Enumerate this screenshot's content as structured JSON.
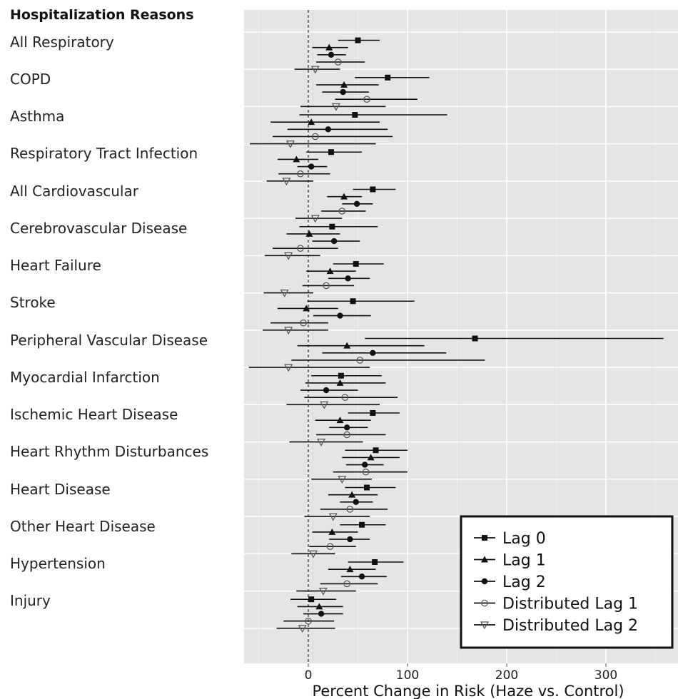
{
  "chart_data": {
    "type": "forest",
    "title": "Hospitalization Reasons",
    "xlabel": "Percent Change in Risk (Haze vs. Control)",
    "xlim": [
      -65,
      365
    ],
    "xticks": [
      0,
      100,
      200,
      300
    ],
    "reference_line": 0,
    "grid": true,
    "legend_position": "bottom-right",
    "series": [
      {
        "name": "Lag 0",
        "marker": "square"
      },
      {
        "name": "Lag 1",
        "marker": "triangle"
      },
      {
        "name": "Lag 2",
        "marker": "circle"
      },
      {
        "name": "Distributed Lag 1",
        "marker": "open-circle"
      },
      {
        "name": "Distributed Lag 2",
        "marker": "open-triangle-down"
      }
    ],
    "categories": [
      {
        "label": "All Respiratory",
        "estimates": [
          [
            50,
            30,
            72
          ],
          [
            21,
            4,
            40
          ],
          [
            23,
            9,
            38
          ],
          [
            30,
            8,
            57
          ],
          [
            7,
            -14,
            32
          ]
        ]
      },
      {
        "label": "COPD",
        "estimates": [
          [
            80,
            47,
            122
          ],
          [
            36,
            8,
            71
          ],
          [
            35,
            14,
            61
          ],
          [
            59,
            27,
            110
          ],
          [
            28,
            -8,
            78
          ]
        ]
      },
      {
        "label": "Asthma",
        "estimates": [
          [
            47,
            -9,
            140
          ],
          [
            3,
            -38,
            72
          ],
          [
            20,
            -21,
            80
          ],
          [
            7,
            -36,
            85
          ],
          [
            -18,
            -59,
            68
          ]
        ]
      },
      {
        "label": "Respiratory Tract Infection",
        "estimates": [
          [
            23,
            -2,
            54
          ],
          [
            -12,
            -31,
            10
          ],
          [
            3,
            -11,
            19
          ],
          [
            -8,
            -30,
            22
          ],
          [
            -22,
            -42,
            5
          ]
        ]
      },
      {
        "label": "All Cardiovascular",
        "estimates": [
          [
            65,
            45,
            88
          ],
          [
            36,
            19,
            54
          ],
          [
            49,
            34,
            65
          ],
          [
            34,
            13,
            58
          ],
          [
            7,
            -13,
            34
          ]
        ]
      },
      {
        "label": "Cerebrovascular Disease",
        "estimates": [
          [
            24,
            -9,
            70
          ],
          [
            1,
            -22,
            32
          ],
          [
            26,
            4,
            52
          ],
          [
            -8,
            -36,
            30
          ],
          [
            -20,
            -44,
            12
          ]
        ]
      },
      {
        "label": "Heart Failure",
        "estimates": [
          [
            48,
            25,
            76
          ],
          [
            22,
            -2,
            48
          ],
          [
            40,
            20,
            62
          ],
          [
            18,
            -6,
            46
          ],
          [
            -24,
            -45,
            5
          ]
        ]
      },
      {
        "label": "Stroke",
        "estimates": [
          [
            45,
            -1,
            107
          ],
          [
            -2,
            -31,
            30
          ],
          [
            32,
            5,
            63
          ],
          [
            -5,
            -38,
            20
          ],
          [
            -20,
            -46,
            20
          ]
        ]
      },
      {
        "label": "Peripheral Vascular Disease",
        "estimates": [
          [
            168,
            57,
            358
          ],
          [
            39,
            -11,
            117
          ],
          [
            65,
            14,
            139
          ],
          [
            52,
            -17,
            178
          ],
          [
            -20,
            -60,
            62
          ]
        ]
      },
      {
        "label": "Myocardial Infarction",
        "estimates": [
          [
            33,
            3,
            74
          ],
          [
            32,
            -3,
            78
          ],
          [
            18,
            -8,
            50
          ],
          [
            37,
            -4,
            90
          ],
          [
            16,
            -22,
            72
          ]
        ]
      },
      {
        "label": "Ischemic Heart Disease",
        "estimates": [
          [
            65,
            40,
            92
          ],
          [
            32,
            7,
            63
          ],
          [
            39,
            21,
            60
          ],
          [
            39,
            8,
            78
          ],
          [
            13,
            -19,
            55
          ]
        ]
      },
      {
        "label": "Heart Rhythm Disturbances",
        "estimates": [
          [
            68,
            37,
            100
          ],
          [
            63,
            34,
            92
          ],
          [
            57,
            38,
            76
          ],
          [
            58,
            25,
            100
          ],
          [
            34,
            3,
            64
          ]
        ]
      },
      {
        "label": "Heart Disease",
        "estimates": [
          [
            59,
            37,
            88
          ],
          [
            44,
            20,
            70
          ],
          [
            48,
            32,
            65
          ],
          [
            42,
            12,
            80
          ],
          [
            25,
            -4,
            62
          ]
        ]
      },
      {
        "label": "Other Heart Disease",
        "estimates": [
          [
            54,
            32,
            78
          ],
          [
            24,
            4,
            50
          ],
          [
            42,
            21,
            62
          ],
          [
            22,
            1,
            48
          ],
          [
            5,
            -17,
            27
          ]
        ]
      },
      {
        "label": "Hypertension",
        "estimates": [
          [
            67,
            40,
            96
          ],
          [
            42,
            20,
            68
          ],
          [
            54,
            33,
            79
          ],
          [
            39,
            12,
            70
          ],
          [
            15,
            -12,
            48
          ]
        ]
      },
      {
        "label": "Injury",
        "estimates": [
          [
            3,
            -18,
            28
          ],
          [
            11,
            -11,
            35
          ],
          [
            13,
            -5,
            35
          ],
          [
            0,
            -25,
            26
          ],
          [
            -6,
            -32,
            27
          ]
        ]
      }
    ]
  }
}
